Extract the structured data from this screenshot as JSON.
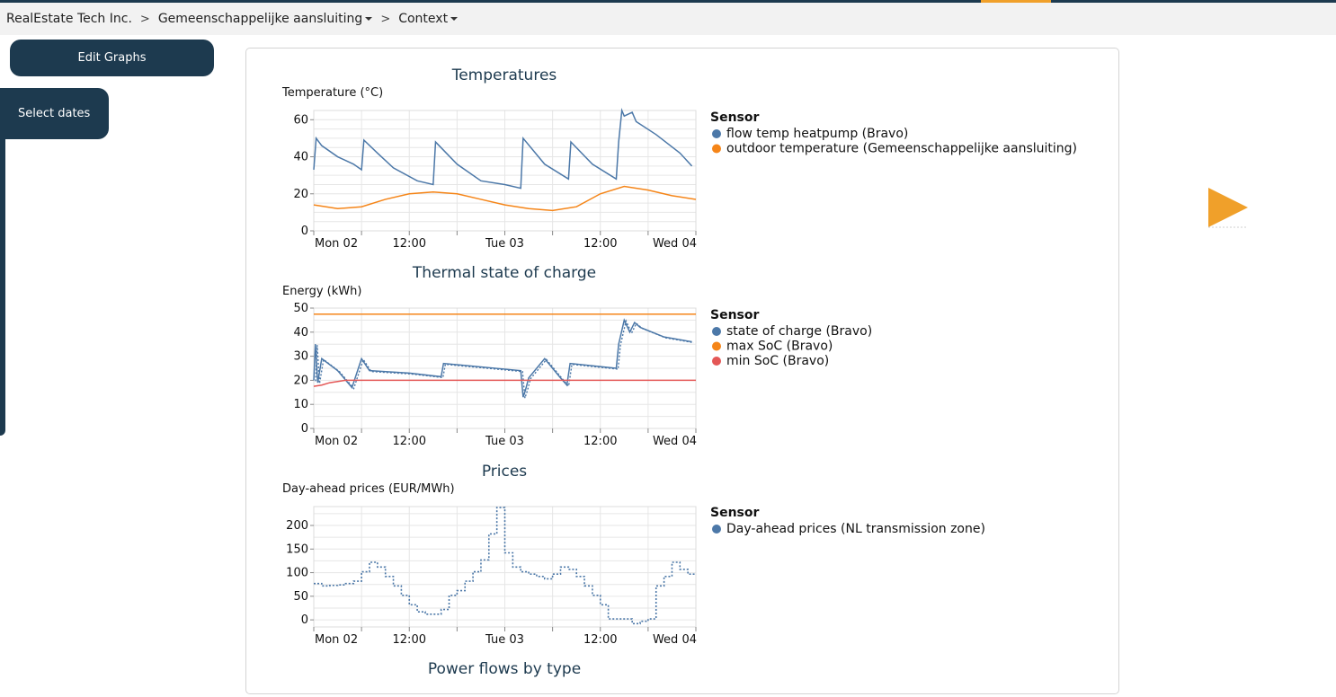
{
  "breadcrumb": {
    "items": [
      {
        "label": "RealEstate Tech Inc.",
        "dropdown": false
      },
      {
        "label": "Gemeenschappelijke aansluiting",
        "dropdown": true
      },
      {
        "label": "Context",
        "dropdown": true
      }
    ],
    "separator": ">"
  },
  "sidebar": {
    "edit_graphs_label": "Edit Graphs",
    "select_dates_label": "Select dates"
  },
  "colors": {
    "brand_dark": "#1d3a4f",
    "accent_orange": "#f0a02a",
    "series_blue": "#4c78a8",
    "series_orange": "#f58518",
    "series_red": "#e45756"
  },
  "play_button_icon": "play-icon",
  "chart_data": [
    {
      "type": "line",
      "title": "Temperatures",
      "ylabel": "Temperature (°C)",
      "legend_title": "Sensor",
      "ylim": [
        0,
        65
      ],
      "y_ticks": [
        0,
        20,
        40,
        60
      ],
      "x_tick_labels": [
        "Mon 02",
        "12:00",
        "Tue 03",
        "12:00",
        "Wed 04"
      ],
      "x_tick_hours": [
        0,
        12,
        24,
        36,
        48
      ],
      "xlim_hours": [
        0,
        48
      ],
      "legend_position": "right",
      "series": [
        {
          "name": "flow temp heatpump (Bravo)",
          "color": "#4c78a8",
          "style": "solid",
          "x": [
            0,
            0.3,
            1,
            3,
            5,
            6,
            6.3,
            8,
            10,
            13,
            15,
            15.3,
            18,
            21,
            24,
            26,
            26.3,
            29,
            32,
            32.3,
            35,
            38,
            38.3,
            38.7,
            39,
            40,
            40.5,
            43,
            46,
            47.5
          ],
          "y": [
            33,
            50,
            46,
            40,
            36,
            33,
            49,
            42,
            34,
            27,
            25,
            48,
            36,
            27,
            25,
            23,
            50,
            36,
            28,
            48,
            36,
            28,
            48,
            65,
            62,
            64,
            59,
            52,
            42,
            35
          ]
        },
        {
          "name": "outdoor temperature (Gemeenschappelijke aansluiting)",
          "color": "#f58518",
          "style": "solid",
          "x": [
            0,
            3,
            6,
            9,
            12,
            15,
            18,
            21,
            24,
            27,
            30,
            33,
            36,
            39,
            42,
            45,
            48
          ],
          "y": [
            14,
            12,
            13,
            17,
            20,
            21,
            20,
            17,
            14,
            12,
            11,
            13,
            20,
            24,
            22,
            19,
            17
          ]
        }
      ]
    },
    {
      "type": "line",
      "title": "Thermal state of charge",
      "ylabel": "Energy (kWh)",
      "legend_title": "Sensor",
      "ylim": [
        0,
        50
      ],
      "y_ticks": [
        0,
        10,
        20,
        30,
        40,
        50
      ],
      "x_tick_labels": [
        "Mon 02",
        "12:00",
        "Tue 03",
        "12:00",
        "Wed 04"
      ],
      "x_tick_hours": [
        0,
        12,
        24,
        36,
        48
      ],
      "xlim_hours": [
        0,
        48
      ],
      "legend_position": "right",
      "series": [
        {
          "name": "state of charge (Bravo)",
          "color": "#4c78a8",
          "style": "solid+dotted",
          "x": [
            0,
            0.2,
            0.5,
            1,
            3,
            4.8,
            6,
            7,
            12,
            16,
            16.3,
            26,
            26.3,
            26.6,
            27,
            29,
            31,
            31.8,
            32.2,
            38,
            38.3,
            39,
            39.7,
            40.3,
            41,
            44,
            47.5
          ],
          "y": [
            20,
            35,
            19,
            29,
            24,
            17,
            29,
            24,
            23,
            21.5,
            27,
            24,
            13,
            16,
            21,
            29,
            21,
            18,
            27,
            25,
            35,
            45,
            40,
            44,
            42,
            38,
            36
          ]
        },
        {
          "name": "max SoC (Bravo)",
          "color": "#f58518",
          "style": "solid",
          "x": [
            0,
            48
          ],
          "y": [
            47.5,
            47.5
          ]
        },
        {
          "name": "min SoC (Bravo)",
          "color": "#e45756",
          "style": "solid",
          "x": [
            0,
            1,
            2,
            3,
            4,
            48
          ],
          "y": [
            17.5,
            18,
            19,
            19.5,
            20,
            20
          ]
        }
      ]
    },
    {
      "type": "line",
      "title": "Prices",
      "ylabel": "Day-ahead prices (EUR/MWh)",
      "legend_title": "Sensor",
      "ylim": [
        -15,
        240
      ],
      "y_ticks": [
        0,
        50,
        100,
        150,
        200
      ],
      "x_tick_labels": [
        "Mon 02",
        "12:00",
        "Tue 03",
        "12:00",
        "Wed 04"
      ],
      "x_tick_hours": [
        0,
        12,
        24,
        36,
        48
      ],
      "xlim_hours": [
        0,
        48
      ],
      "legend_position": "right",
      "series": [
        {
          "name": "Day-ahead prices (NL transmission zone)",
          "color": "#4c78a8",
          "style": "dotted-step",
          "x": [
            0,
            1,
            2,
            3,
            4,
            5,
            6,
            7,
            8,
            9,
            10,
            11,
            12,
            13,
            14,
            15,
            16,
            17,
            18,
            19,
            20,
            21,
            22,
            23,
            24,
            25,
            26,
            27,
            28,
            29,
            30,
            31,
            32,
            33,
            34,
            35,
            36,
            37,
            38,
            39,
            40,
            41,
            42,
            43,
            44,
            45,
            46,
            47
          ],
          "y": [
            77,
            72,
            73,
            74,
            77,
            82,
            102,
            122,
            112,
            92,
            72,
            52,
            32,
            17,
            12,
            12,
            22,
            52,
            62,
            82,
            102,
            127,
            182,
            238,
            142,
            112,
            102,
            97,
            92,
            87,
            97,
            112,
            107,
            92,
            72,
            52,
            32,
            2,
            2,
            2,
            -8,
            -3,
            2,
            72,
            92,
            122,
            107,
            97
          ]
        }
      ]
    },
    {
      "type": "line",
      "title": "Power flows by type",
      "series": []
    }
  ]
}
